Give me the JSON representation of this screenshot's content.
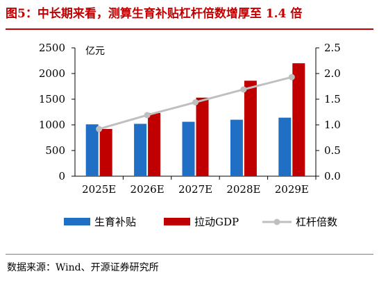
{
  "header": {
    "title": "图5：中长期来看，测算生育补贴杠杆倍数增厚至 1.4 倍"
  },
  "footer": {
    "source": "数据来源：Wind、开源证券研究所"
  },
  "colors": {
    "title": "#c00000",
    "subsidy": "#1f6fc5",
    "gdp": "#c00000",
    "leverage": "#bfbfbf"
  },
  "chart_data": {
    "type": "bar",
    "categories": [
      "2025E",
      "2026E",
      "2027E",
      "2028E",
      "2029E"
    ],
    "unit_label": "亿元",
    "y_left": {
      "lim": [
        0,
        2500
      ],
      "ticks": [
        "0",
        "500",
        "1000",
        "1500",
        "2000",
        "2500"
      ]
    },
    "y_right": {
      "lim": [
        0.0,
        2.5
      ],
      "ticks": [
        "0.0",
        "0.5",
        "1.0",
        "1.5",
        "2.0",
        "2.5"
      ]
    },
    "series": [
      {
        "name": "生育补贴",
        "kind": "bar",
        "axis": "left",
        "values": [
          1010,
          1020,
          1060,
          1100,
          1140
        ]
      },
      {
        "name": "拉动GDP",
        "kind": "bar",
        "axis": "left",
        "values": [
          920,
          1230,
          1530,
          1860,
          2200
        ]
      },
      {
        "name": "杠杆倍数",
        "kind": "line",
        "axis": "right",
        "values": [
          0.92,
          1.19,
          1.44,
          1.69,
          1.93
        ]
      }
    ],
    "legend": "bottom",
    "grid": false
  }
}
